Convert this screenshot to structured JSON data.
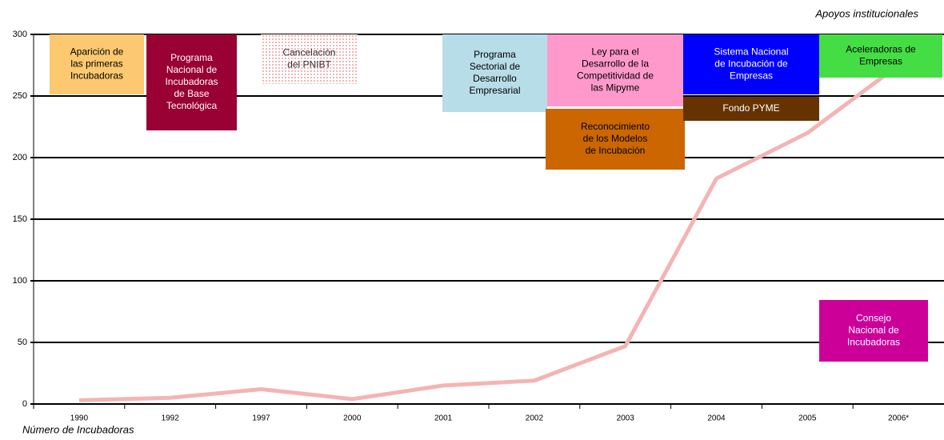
{
  "chart_data": {
    "type": "line",
    "y_label": "Número de Incubadoras",
    "annotations_title": "Apoyos institucionales",
    "categories": [
      "1990",
      "1992",
      "1997",
      "2000",
      "2001",
      "2002",
      "2003",
      "2004",
      "2005",
      "2006*"
    ],
    "series": [
      {
        "color": "#f4b4b4",
        "values": [
          3,
          5,
          12,
          4,
          15,
          19,
          47,
          183,
          220,
          275
        ]
      }
    ],
    "ylim": [
      0,
      300
    ],
    "yticks": [
      0,
      50,
      100,
      150,
      200,
      250,
      300
    ],
    "grid": true,
    "annotations": [
      {
        "lines": [
          "Aparición de",
          "las primeras",
          "Incubadoras"
        ],
        "color": "#fcc870",
        "text_color": "#000"
      },
      {
        "lines": [
          "Programa",
          "Nacional de",
          "Incubadoras",
          "de Base",
          "Tecnológica"
        ],
        "color": "#990033",
        "text_color": "#fff"
      },
      {
        "lines": [
          "Cancelación",
          "del PNIBT"
        ],
        "color": "#f08080",
        "text_color": "#333"
      },
      {
        "lines": [
          "Programa",
          "Sectorial de",
          "Desarrollo",
          "Empresarial"
        ],
        "color": "#b7dde8",
        "text_color": "#000"
      },
      {
        "lines": [
          "Ley para el",
          "Desarrollo de la",
          "Competitividad de",
          "las Mipyme"
        ],
        "color": "#ff99cc",
        "text_color": "#000"
      },
      {
        "lines": [
          "Reconocimiento",
          "de los Modelos",
          "de Incubación"
        ],
        "color": "#cc6600",
        "text_color": "#000"
      },
      {
        "lines": [
          "Sistema Nacional",
          "de Incubación de",
          "Empresas"
        ],
        "color": "#0000ff",
        "text_color": "#fff"
      },
      {
        "lines": [
          "Fondo PYME"
        ],
        "color": "#663300",
        "text_color": "#fff"
      },
      {
        "lines": [
          "Aceleradoras de",
          "Empresas"
        ],
        "color": "#44dd44",
        "text_color": "#000"
      },
      {
        "lines": [
          "Consejo",
          "Nacional de",
          "Incubadoras"
        ],
        "color": "#cc0099",
        "text_color": "#fff"
      }
    ]
  }
}
